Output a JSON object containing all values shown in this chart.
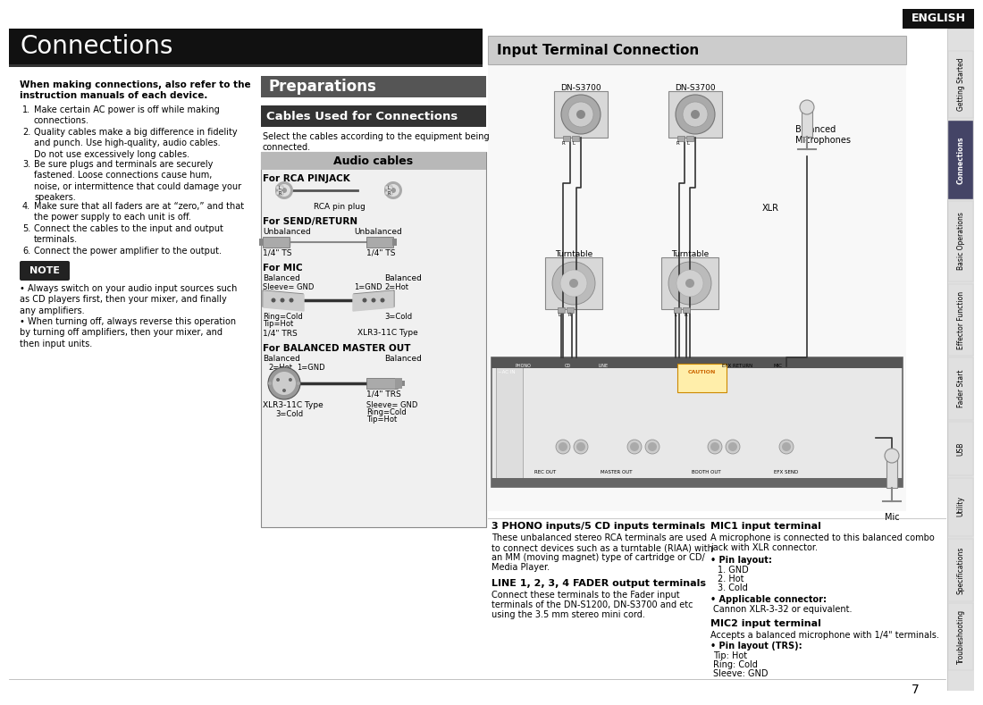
{
  "page_bg": "#ffffff",
  "title_bar_color": "#111111",
  "title_text": "Connections",
  "title_text_color": "#ffffff",
  "english_bar_color": "#111111",
  "english_text": "ENGLISH",
  "section2_bg": "#cccccc",
  "section2_title": "Input Terminal Connection",
  "prep_bar_color": "#555555",
  "prep_text": "Preparations",
  "cables_bar_color": "#333333",
  "cables_text": "Cables Used for Connections",
  "audio_cables_bg": "#b8b8b8",
  "audio_cables_text": "Audio cables",
  "connections_note_bold": "When making connections, also refer to the\ninstruction manuals of each device.",
  "note_text": "NOTE",
  "note_bg": "#222222",
  "note_text_color": "#ffffff",
  "cables_description_1": "Select the cables according to the equipment being",
  "cables_description_2": "connected.",
  "rca_label": "For RCA PINJACK",
  "rca_plug_label": "RCA pin plug",
  "send_label": "For SEND/RETURN",
  "unbalanced_left": "Unbalanced",
  "unbalanced_right": "Unbalanced",
  "quarter_ts_left": "1/4\" TS",
  "quarter_ts_right": "1/4\" TS",
  "mic_label": "For MIC",
  "balanced_left": "Balanced",
  "balanced_right": "Balanced",
  "sleeve_gnd": "Sleeve= GND",
  "one_gnd": "1=GND",
  "two_hot": "2=Hot",
  "ring_cold": "Ring=Cold",
  "tip_hot": "Tip=Hot",
  "three_cold_right": "3=Cold",
  "quarter_trs_left": "1/4\" TRS",
  "xlr311c_right": "XLR3-11C Type",
  "balanced_master_label": "For BALANCED MASTER OUT",
  "bm_balanced_left": "Balanced",
  "bm_balanced_right": "Balanced",
  "bm_two_hot": "2=Hot",
  "bm_one_gnd": "1=GND",
  "bm_xlr_left": "XLR3-11C Type",
  "bm_three_cold": "3=Cold",
  "bm_quarter_trs": "1/4\" TRS",
  "bm_sleeve_gnd": "Sleeve= GND",
  "bm_ring_cold": "Ring=Cold",
  "bm_tip_hot": "Tip=Hot",
  "phono_title": "3 PHONO inputs/5 CD inputs terminals",
  "phono_body_1": "These unbalanced stereo RCA terminals are used",
  "phono_body_2": "to connect devices such as a turntable (RIAA) with",
  "phono_body_3": "an MM (moving magnet) type of cartridge or CD/",
  "phono_body_4": "Media Player.",
  "line_title": "LINE 1, 2, 3, 4 FADER output terminals",
  "line_body_1": "Connect these terminals to the Fader input",
  "line_body_2": "terminals of the DN-S1200, DN-S3700 and etc",
  "line_body_3": "using the 3.5 mm stereo mini cord.",
  "mic1_title": "MIC1 input terminal",
  "mic1_body_1": "A microphone is connected to this balanced combo",
  "mic1_body_2": "jack with XLR connector.",
  "pin_layout_title": "• Pin layout:",
  "pin_1": "1. GND",
  "pin_2": "2. Hot",
  "pin_3": "3. Cold",
  "applicable_title": "• Applicable connector:",
  "applicable_body": "Cannon XLR-3-32 or equivalent.",
  "mic2_title": "MIC2 input terminal",
  "mic2_body": "Accepts a balanced microphone with 1/4\" terminals.",
  "pin_trs_title": "• Pin layout (TRS):",
  "pin_trs_tip": "Tip: Hot",
  "pin_trs_ring": "Ring: Cold",
  "pin_trs_sleeve": "Sleeve: GND",
  "page_number": "7",
  "sidebar_labels": [
    "Getting Started",
    "Connections",
    "Basic Operations",
    "Effector Function",
    "Fader Start",
    "USB",
    "Utility",
    "Specifications",
    "Troubleshooting"
  ],
  "sidebar_active": 1,
  "turntable_label_left": "Turntable",
  "turntable_label_right": "Turntable",
  "dn3700_left": "DN-S3700",
  "dn3700_right": "DN-S3700",
  "xlr_label": "XLR",
  "balanced_mic_label": "Balanced\nMicrophones",
  "mic_label_bottom": "Mic",
  "list_items": [
    [
      "1.",
      "Make certain AC power is off while making\nconnections."
    ],
    [
      "2.",
      "Quality cables make a big difference in fidelity\nand punch. Use high-quality, audio cables.\nDo not use excessively long cables."
    ],
    [
      "3.",
      "Be sure plugs and terminals are securely\nfastened. Loose connections cause hum,\nnoise, or intermittence that could damage your\nspeakers."
    ],
    [
      "4.",
      "Make sure that all faders are at “zero,” and that\nthe power supply to each unit is off."
    ],
    [
      "5.",
      "Connect the cables to the input and output\nterminals."
    ],
    [
      "6.",
      "Connect the power amplifier to the output."
    ]
  ],
  "bullet_1": "Always switch on your audio input sources such\nas CD players first, then your mixer, and finally\nany amplifiers.",
  "bullet_2": "When turning off, always reverse this operation\nby turning off amplifiers, then your mixer, and\nthen input units."
}
